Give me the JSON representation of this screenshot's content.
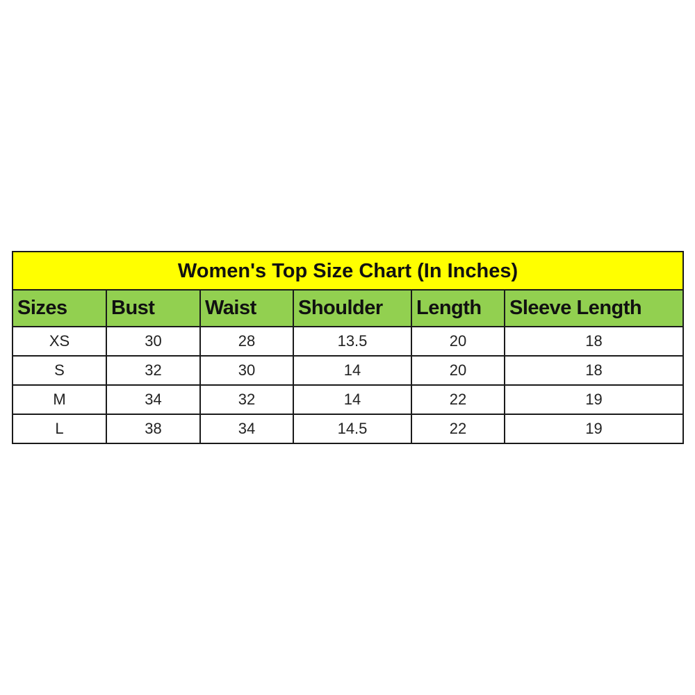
{
  "title": "Women's Top Size Chart (In Inches)",
  "colors": {
    "title_bg": "#ffff00",
    "header_bg": "#92d050",
    "border": "#1a1a1a"
  },
  "headers": [
    "Sizes",
    "Bust",
    "Waist",
    "Shoulder",
    "Length",
    "Sleeve Length"
  ],
  "rows": [
    [
      "XS",
      "30",
      "28",
      "13.5",
      "20",
      "18"
    ],
    [
      "S",
      "32",
      "30",
      "14",
      "20",
      "18"
    ],
    [
      "M",
      "34",
      "32",
      "14",
      "22",
      "19"
    ],
    [
      "L",
      "38",
      "34",
      "14.5",
      "22",
      "19"
    ]
  ]
}
